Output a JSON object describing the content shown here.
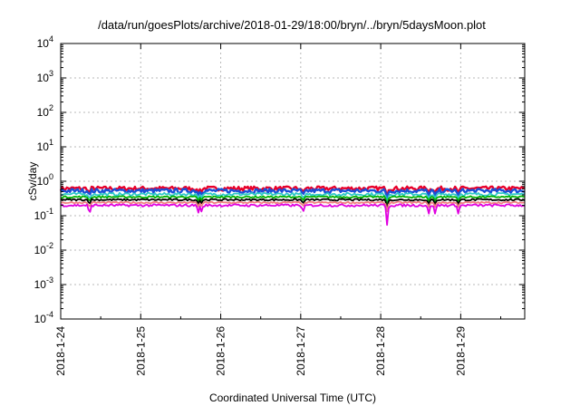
{
  "chart_data": {
    "type": "line",
    "title": "/data/run/goesPlots/archive/2018-01-29/18:00/bryn/../bryn/5daysMoon.plot",
    "xlabel": "Coordinated Universal Time (UTC)",
    "ylabel": "cSv/day",
    "yscale": "log",
    "ylim_exp": [
      -4,
      4
    ],
    "yticks": [
      {
        "exp": -4,
        "label": "10-4"
      },
      {
        "exp": -3,
        "label": "10-3"
      },
      {
        "exp": -2,
        "label": "10-2"
      },
      {
        "exp": -1,
        "label": "10-1"
      },
      {
        "exp": 0,
        "label": "100"
      },
      {
        "exp": 1,
        "label": "101"
      },
      {
        "exp": 2,
        "label": "102"
      },
      {
        "exp": 3,
        "label": "103"
      },
      {
        "exp": 4,
        "label": "104"
      }
    ],
    "xlim_days": [
      0,
      5.8
    ],
    "xticks": [
      {
        "day": 0,
        "label": "2018-1-24"
      },
      {
        "day": 1,
        "label": "2018-1-25"
      },
      {
        "day": 2,
        "label": "2018-1-26"
      },
      {
        "day": 3,
        "label": "2018-1-27"
      },
      {
        "day": 4,
        "label": "2018-1-28"
      },
      {
        "day": 5,
        "label": "2018-1-29"
      }
    ],
    "grid": true,
    "series": [
      {
        "color": "#e8002a",
        "base": 0.62,
        "amp": 0.07
      },
      {
        "color": "#1a4fd6",
        "base": 0.53,
        "amp": 0.07
      },
      {
        "color": "#2ec8c8",
        "base": 0.42,
        "amp": 0.05
      },
      {
        "color": "#00b000",
        "base": 0.35,
        "amp": 0.03
      },
      {
        "color": "#000000",
        "base": 0.29,
        "amp": 0.03
      },
      {
        "color": "#f08080",
        "base": 0.24,
        "amp": 0.03
      },
      {
        "color": "#e000e0",
        "base": 0.2,
        "amp": 0.04
      }
    ],
    "dips": [
      {
        "day": 0.36,
        "value": 0.1
      },
      {
        "day": 1.72,
        "value": 0.12
      },
      {
        "day": 1.76,
        "value": 0.13
      },
      {
        "day": 3.03,
        "value": 0.12
      },
      {
        "day": 4.08,
        "value": 0.05
      },
      {
        "day": 4.6,
        "value": 0.11
      },
      {
        "day": 4.68,
        "value": 0.11
      },
      {
        "day": 4.97,
        "value": 0.11
      }
    ]
  }
}
